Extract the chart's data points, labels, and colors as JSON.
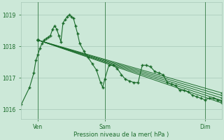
{
  "xlabel": "Pression niveau de la mer( hPa )",
  "background_color": "#cce8d8",
  "line_color": "#1a6b2a",
  "grid_color": "#a8c8b8",
  "xlim": [
    0,
    96
  ],
  "ylim": [
    1015.7,
    1019.4
  ],
  "yticks": [
    1016,
    1017,
    1018,
    1019
  ],
  "xtick_positions": [
    8,
    40,
    88
  ],
  "xtick_labels": [
    "Ven",
    "Sam",
    "Dim"
  ],
  "vline_positions": [
    8,
    40,
    88
  ],
  "series_main": [
    [
      0,
      1016.15
    ],
    [
      4,
      1016.7
    ],
    [
      6,
      1017.15
    ],
    [
      7,
      1017.55
    ],
    [
      8,
      1017.75
    ],
    [
      9,
      1017.95
    ],
    [
      10,
      1018.1
    ],
    [
      11,
      1018.2
    ],
    [
      12,
      1018.25
    ],
    [
      13,
      1018.3
    ],
    [
      14,
      1018.35
    ],
    [
      15,
      1018.55
    ],
    [
      16,
      1018.65
    ],
    [
      17,
      1018.55
    ],
    [
      18,
      1018.35
    ],
    [
      19,
      1018.15
    ],
    [
      20,
      1018.75
    ],
    [
      21,
      1018.85
    ],
    [
      22,
      1018.95
    ],
    [
      23,
      1019.0
    ],
    [
      24,
      1018.95
    ],
    [
      25,
      1018.9
    ],
    [
      26,
      1018.65
    ],
    [
      27,
      1018.4
    ],
    [
      28,
      1018.1
    ],
    [
      30,
      1017.85
    ],
    [
      32,
      1017.65
    ],
    [
      34,
      1017.45
    ],
    [
      36,
      1017.25
    ],
    [
      38,
      1016.85
    ],
    [
      39,
      1016.7
    ],
    [
      40,
      1016.95
    ],
    [
      42,
      1017.4
    ],
    [
      44,
      1017.4
    ],
    [
      46,
      1017.3
    ],
    [
      48,
      1017.1
    ],
    [
      50,
      1016.95
    ],
    [
      52,
      1016.9
    ],
    [
      54,
      1016.85
    ],
    [
      56,
      1016.85
    ],
    [
      58,
      1017.4
    ],
    [
      60,
      1017.4
    ],
    [
      62,
      1017.35
    ],
    [
      64,
      1017.2
    ],
    [
      66,
      1017.15
    ],
    [
      68,
      1017.1
    ],
    [
      70,
      1016.85
    ],
    [
      72,
      1016.8
    ],
    [
      74,
      1016.75
    ],
    [
      76,
      1016.6
    ],
    [
      78,
      1016.6
    ],
    [
      80,
      1016.55
    ],
    [
      82,
      1016.45
    ],
    [
      84,
      1016.4
    ],
    [
      86,
      1016.35
    ],
    [
      88,
      1016.3
    ],
    [
      90,
      1016.35
    ],
    [
      92,
      1016.35
    ],
    [
      94,
      1016.3
    ],
    [
      96,
      1016.25
    ]
  ],
  "series_trends": [
    [
      [
        8,
        1018.2
      ],
      [
        96,
        1016.2
      ]
    ],
    [
      [
        8,
        1018.2
      ],
      [
        96,
        1016.28
      ]
    ],
    [
      [
        8,
        1018.2
      ],
      [
        96,
        1016.36
      ]
    ],
    [
      [
        8,
        1018.2
      ],
      [
        96,
        1016.44
      ]
    ],
    [
      [
        8,
        1018.2
      ],
      [
        96,
        1016.52
      ]
    ]
  ],
  "figsize": [
    3.2,
    2.0
  ],
  "dpi": 100
}
